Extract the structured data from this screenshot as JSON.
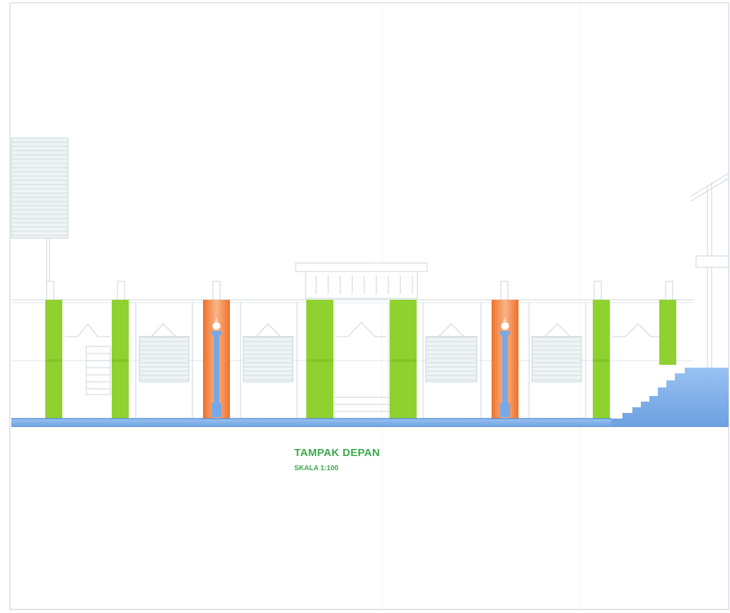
{
  "drawing": {
    "title": "TAMPAK DEPAN",
    "scale": "SKALA 1:100"
  },
  "colors": {
    "frame": "#cfd6dc",
    "line": "#c9d3da",
    "accent_green": "#8fd12e",
    "accent_green_dark": "#7cc023",
    "accent_orange": "#f07a2a",
    "accent_orange_light": "#f7b07a",
    "accent_blue": "#78a8e6",
    "ground_blue": "#7db0ea",
    "title_green": "#3aa84a"
  }
}
